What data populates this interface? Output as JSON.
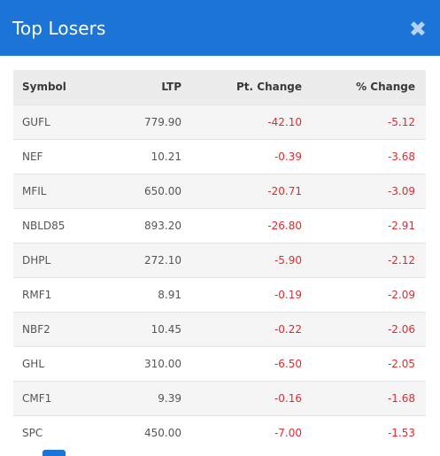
{
  "header": {
    "title": "Top Losers"
  },
  "table": {
    "columns": [
      "Symbol",
      "LTP",
      "Pt. Change",
      "% Change"
    ],
    "rows": [
      {
        "symbol": "GUFL",
        "ltp": "779.90",
        "pt_change": "-42.10",
        "pct_change": "-5.12"
      },
      {
        "symbol": "NEF",
        "ltp": "10.21",
        "pt_change": "-0.39",
        "pct_change": "-3.68"
      },
      {
        "symbol": "MFIL",
        "ltp": "650.00",
        "pt_change": "-20.71",
        "pct_change": "-3.09"
      },
      {
        "symbol": "NBLD85",
        "ltp": "893.20",
        "pt_change": "-26.80",
        "pct_change": "-2.91"
      },
      {
        "symbol": "DHPL",
        "ltp": "272.10",
        "pt_change": "-5.90",
        "pct_change": "-2.12"
      },
      {
        "symbol": "RMF1",
        "ltp": "8.91",
        "pt_change": "-0.19",
        "pct_change": "-2.09"
      },
      {
        "symbol": "NBF2",
        "ltp": "10.45",
        "pt_change": "-0.22",
        "pct_change": "-2.06"
      },
      {
        "symbol": "GHL",
        "ltp": "310.00",
        "pt_change": "-6.50",
        "pct_change": "-2.05"
      },
      {
        "symbol": "CMF1",
        "ltp": "9.39",
        "pt_change": "-0.16",
        "pct_change": "-1.68"
      },
      {
        "symbol": "SPC",
        "ltp": "450.00",
        "pt_change": "-7.00",
        "pct_change": "-1.53"
      }
    ]
  },
  "colors": {
    "header_bg": "#1b74d6",
    "negative": "#e8262d"
  },
  "icons": {
    "close": "close-icon"
  }
}
